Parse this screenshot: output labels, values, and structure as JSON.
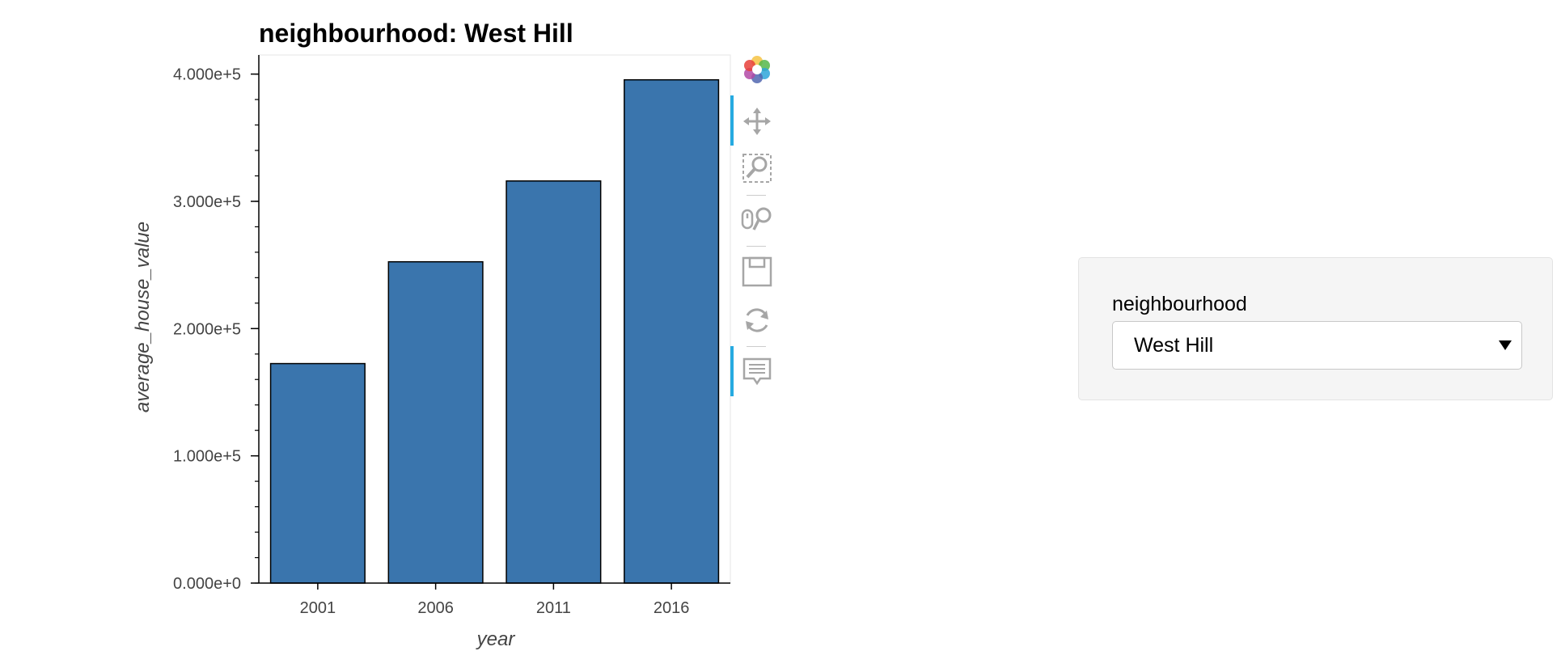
{
  "chart_data": {
    "type": "bar",
    "title": "neighbourhood: West Hill",
    "xlabel": "year",
    "ylabel": "average_house_value",
    "categories": [
      "2001",
      "2006",
      "2011",
      "2016"
    ],
    "values": [
      172500,
      252500,
      316000,
      395500
    ],
    "ylim": [
      0,
      415000
    ],
    "yticks": [
      0,
      100000,
      200000,
      300000,
      400000
    ],
    "ytick_labels": [
      "0.000e+0",
      "1.000e+5",
      "2.000e+5",
      "3.000e+5",
      "4.000e+5"
    ],
    "bar_color": "#3a75ad",
    "bar_edge_color": "#000000",
    "grid": false,
    "legend": "none"
  },
  "toolbar": {
    "tools": [
      {
        "name": "bokeh-logo-icon",
        "active": false
      },
      {
        "name": "pan-icon",
        "active": true
      },
      {
        "name": "box-zoom-icon",
        "active": false
      },
      {
        "name": "wheel-zoom-icon",
        "active": false
      },
      {
        "name": "save-icon",
        "active": false
      },
      {
        "name": "reset-icon",
        "active": false
      },
      {
        "name": "hover-icon",
        "active": true
      }
    ]
  },
  "widget": {
    "label": "neighbourhood",
    "selected": "West Hill"
  }
}
